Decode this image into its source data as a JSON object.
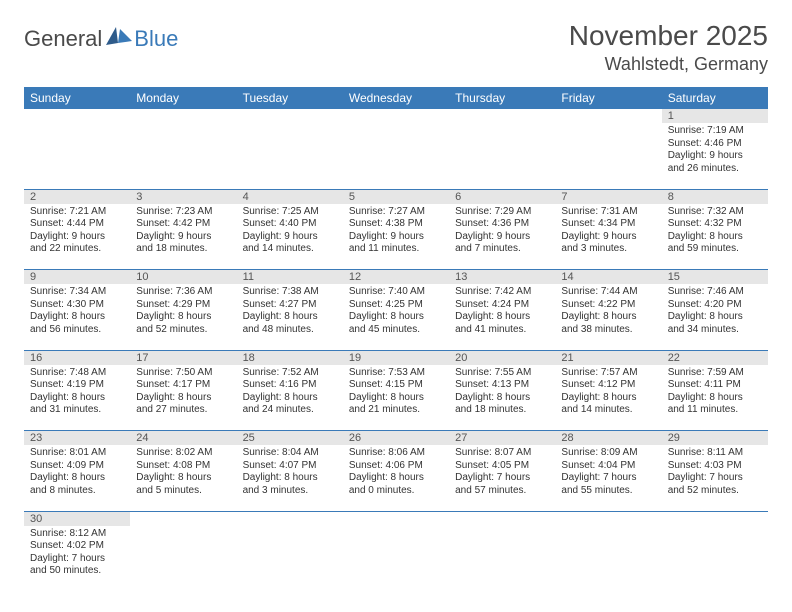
{
  "logo": {
    "textGeneral": "General",
    "textBlue": "Blue"
  },
  "header": {
    "monthYear": "November 2025",
    "location": "Wahlstedt, Germany"
  },
  "colors": {
    "headerBar": "#3a7ab8",
    "dayNumBg": "#e6e6e6",
    "text": "#333333",
    "rule": "#3a7ab8"
  },
  "weekdays": [
    "Sunday",
    "Monday",
    "Tuesday",
    "Wednesday",
    "Thursday",
    "Friday",
    "Saturday"
  ],
  "weeks": [
    [
      null,
      null,
      null,
      null,
      null,
      null,
      {
        "n": "1",
        "rise": "Sunrise: 7:19 AM",
        "set": "Sunset: 4:46 PM",
        "day1": "Daylight: 9 hours",
        "day2": "and 26 minutes."
      }
    ],
    [
      {
        "n": "2",
        "rise": "Sunrise: 7:21 AM",
        "set": "Sunset: 4:44 PM",
        "day1": "Daylight: 9 hours",
        "day2": "and 22 minutes."
      },
      {
        "n": "3",
        "rise": "Sunrise: 7:23 AM",
        "set": "Sunset: 4:42 PM",
        "day1": "Daylight: 9 hours",
        "day2": "and 18 minutes."
      },
      {
        "n": "4",
        "rise": "Sunrise: 7:25 AM",
        "set": "Sunset: 4:40 PM",
        "day1": "Daylight: 9 hours",
        "day2": "and 14 minutes."
      },
      {
        "n": "5",
        "rise": "Sunrise: 7:27 AM",
        "set": "Sunset: 4:38 PM",
        "day1": "Daylight: 9 hours",
        "day2": "and 11 minutes."
      },
      {
        "n": "6",
        "rise": "Sunrise: 7:29 AM",
        "set": "Sunset: 4:36 PM",
        "day1": "Daylight: 9 hours",
        "day2": "and 7 minutes."
      },
      {
        "n": "7",
        "rise": "Sunrise: 7:31 AM",
        "set": "Sunset: 4:34 PM",
        "day1": "Daylight: 9 hours",
        "day2": "and 3 minutes."
      },
      {
        "n": "8",
        "rise": "Sunrise: 7:32 AM",
        "set": "Sunset: 4:32 PM",
        "day1": "Daylight: 8 hours",
        "day2": "and 59 minutes."
      }
    ],
    [
      {
        "n": "9",
        "rise": "Sunrise: 7:34 AM",
        "set": "Sunset: 4:30 PM",
        "day1": "Daylight: 8 hours",
        "day2": "and 56 minutes."
      },
      {
        "n": "10",
        "rise": "Sunrise: 7:36 AM",
        "set": "Sunset: 4:29 PM",
        "day1": "Daylight: 8 hours",
        "day2": "and 52 minutes."
      },
      {
        "n": "11",
        "rise": "Sunrise: 7:38 AM",
        "set": "Sunset: 4:27 PM",
        "day1": "Daylight: 8 hours",
        "day2": "and 48 minutes."
      },
      {
        "n": "12",
        "rise": "Sunrise: 7:40 AM",
        "set": "Sunset: 4:25 PM",
        "day1": "Daylight: 8 hours",
        "day2": "and 45 minutes."
      },
      {
        "n": "13",
        "rise": "Sunrise: 7:42 AM",
        "set": "Sunset: 4:24 PM",
        "day1": "Daylight: 8 hours",
        "day2": "and 41 minutes."
      },
      {
        "n": "14",
        "rise": "Sunrise: 7:44 AM",
        "set": "Sunset: 4:22 PM",
        "day1": "Daylight: 8 hours",
        "day2": "and 38 minutes."
      },
      {
        "n": "15",
        "rise": "Sunrise: 7:46 AM",
        "set": "Sunset: 4:20 PM",
        "day1": "Daylight: 8 hours",
        "day2": "and 34 minutes."
      }
    ],
    [
      {
        "n": "16",
        "rise": "Sunrise: 7:48 AM",
        "set": "Sunset: 4:19 PM",
        "day1": "Daylight: 8 hours",
        "day2": "and 31 minutes."
      },
      {
        "n": "17",
        "rise": "Sunrise: 7:50 AM",
        "set": "Sunset: 4:17 PM",
        "day1": "Daylight: 8 hours",
        "day2": "and 27 minutes."
      },
      {
        "n": "18",
        "rise": "Sunrise: 7:52 AM",
        "set": "Sunset: 4:16 PM",
        "day1": "Daylight: 8 hours",
        "day2": "and 24 minutes."
      },
      {
        "n": "19",
        "rise": "Sunrise: 7:53 AM",
        "set": "Sunset: 4:15 PM",
        "day1": "Daylight: 8 hours",
        "day2": "and 21 minutes."
      },
      {
        "n": "20",
        "rise": "Sunrise: 7:55 AM",
        "set": "Sunset: 4:13 PM",
        "day1": "Daylight: 8 hours",
        "day2": "and 18 minutes."
      },
      {
        "n": "21",
        "rise": "Sunrise: 7:57 AM",
        "set": "Sunset: 4:12 PM",
        "day1": "Daylight: 8 hours",
        "day2": "and 14 minutes."
      },
      {
        "n": "22",
        "rise": "Sunrise: 7:59 AM",
        "set": "Sunset: 4:11 PM",
        "day1": "Daylight: 8 hours",
        "day2": "and 11 minutes."
      }
    ],
    [
      {
        "n": "23",
        "rise": "Sunrise: 8:01 AM",
        "set": "Sunset: 4:09 PM",
        "day1": "Daylight: 8 hours",
        "day2": "and 8 minutes."
      },
      {
        "n": "24",
        "rise": "Sunrise: 8:02 AM",
        "set": "Sunset: 4:08 PM",
        "day1": "Daylight: 8 hours",
        "day2": "and 5 minutes."
      },
      {
        "n": "25",
        "rise": "Sunrise: 8:04 AM",
        "set": "Sunset: 4:07 PM",
        "day1": "Daylight: 8 hours",
        "day2": "and 3 minutes."
      },
      {
        "n": "26",
        "rise": "Sunrise: 8:06 AM",
        "set": "Sunset: 4:06 PM",
        "day1": "Daylight: 8 hours",
        "day2": "and 0 minutes."
      },
      {
        "n": "27",
        "rise": "Sunrise: 8:07 AM",
        "set": "Sunset: 4:05 PM",
        "day1": "Daylight: 7 hours",
        "day2": "and 57 minutes."
      },
      {
        "n": "28",
        "rise": "Sunrise: 8:09 AM",
        "set": "Sunset: 4:04 PM",
        "day1": "Daylight: 7 hours",
        "day2": "and 55 minutes."
      },
      {
        "n": "29",
        "rise": "Sunrise: 8:11 AM",
        "set": "Sunset: 4:03 PM",
        "day1": "Daylight: 7 hours",
        "day2": "and 52 minutes."
      }
    ],
    [
      {
        "n": "30",
        "rise": "Sunrise: 8:12 AM",
        "set": "Sunset: 4:02 PM",
        "day1": "Daylight: 7 hours",
        "day2": "and 50 minutes."
      },
      null,
      null,
      null,
      null,
      null,
      null
    ]
  ]
}
